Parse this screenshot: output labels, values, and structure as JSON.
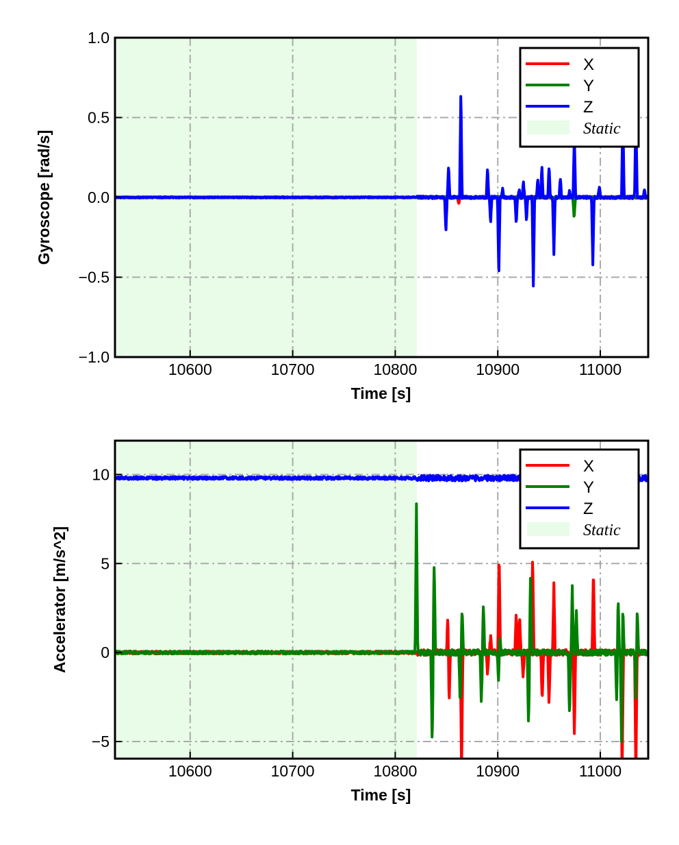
{
  "chart_data": [
    {
      "type": "line",
      "xlabel": "Time [s]",
      "ylabel": "Gyroscope [rad/s]",
      "xlim": [
        10526.7,
        11046.7
      ],
      "ylim": [
        -1.0,
        1.0
      ],
      "xticks": [
        10600,
        10700,
        10800,
        10900,
        11000
      ],
      "xtick_labels": [
        "10600",
        "10700",
        "10800",
        "10900",
        "11000"
      ],
      "yticks": [
        -1.0,
        -0.5,
        0.0,
        0.5,
        1.0
      ],
      "ytick_labels": [
        "−1.0",
        "−0.5",
        "0.0",
        "0.5",
        "1.0"
      ],
      "grid": true,
      "legend_position": "top-right",
      "static_region": {
        "label": "Static",
        "x_start": 10526.7,
        "x_end": 10821,
        "color": "#e8fce8"
      },
      "series": [
        {
          "name": "X",
          "color": "#ff0000",
          "baseline": 0.0,
          "noise": 0.003,
          "spikes": [
            [
              10862,
              -0.04
            ]
          ]
        },
        {
          "name": "Y",
          "color": "#008000",
          "baseline": 0.0,
          "noise": 0.003,
          "spikes": [
            [
              10974.5,
              -0.14
            ]
          ]
        },
        {
          "name": "Z",
          "color": "#0000ff",
          "baseline": 0.0,
          "noise": 0.004,
          "spikes": [
            [
              10849.4,
              -0.22
            ],
            [
              10852,
              0.2
            ],
            [
              10864,
              0.68
            ],
            [
              10890,
              0.19
            ],
            [
              10893,
              -0.16
            ],
            [
              10901,
              -0.5
            ],
            [
              10904.7,
              0.05
            ],
            [
              10918,
              -0.17
            ],
            [
              10921,
              0.05
            ],
            [
              10925,
              0.1
            ],
            [
              10928,
              -0.15
            ],
            [
              10934.7,
              -0.55
            ],
            [
              10939,
              0.12
            ],
            [
              10943,
              0.2
            ],
            [
              10950,
              0.2
            ],
            [
              10954.7,
              -0.36
            ],
            [
              10961,
              0.13
            ],
            [
              10970,
              0.04
            ],
            [
              10974.7,
              0.4
            ],
            [
              10992.7,
              -0.42
            ],
            [
              10999,
              0.07
            ],
            [
              11022,
              0.55
            ],
            [
              11034.7,
              0.55
            ],
            [
              11043,
              0.05
            ]
          ]
        }
      ]
    },
    {
      "type": "line",
      "xlabel": "Time [s]",
      "ylabel": "Accelerator [m/s^2]",
      "xlim": [
        10526.7,
        11046.7
      ],
      "ylim": [
        -5.96,
        11.9
      ],
      "xticks": [
        10600,
        10700,
        10800,
        10900,
        11000
      ],
      "xtick_labels": [
        "10600",
        "10700",
        "10800",
        "10900",
        "11000"
      ],
      "yticks": [
        -5,
        0,
        5,
        10
      ],
      "ytick_labels": [
        "−5",
        "0",
        "5",
        "10"
      ],
      "grid": true,
      "legend_position": "top-right",
      "static_region": {
        "label": "Static",
        "x_start": 10526.7,
        "x_end": 10821,
        "color": "#e8fce8"
      },
      "series": [
        {
          "name": "X",
          "color": "#ff0000",
          "baseline": 0.0,
          "noise": 0.08,
          "spikes": [
            [
              10851.3,
              2.3
            ],
            [
              10852.5,
              -3.0
            ],
            [
              10864.7,
              -7
            ],
            [
              10890,
              -1.3
            ],
            [
              10893,
              0.9
            ],
            [
              10901.3,
              5.65
            ],
            [
              10918,
              2.3
            ],
            [
              10921.3,
              2.0
            ],
            [
              10924.7,
              -1.5
            ],
            [
              10934,
              5.6
            ],
            [
              10943.3,
              -2.8
            ],
            [
              10950,
              -3.0
            ],
            [
              10954.7,
              3.8
            ],
            [
              10974.7,
              -4.6
            ],
            [
              10993.3,
              4.95
            ],
            [
              11021.3,
              -7
            ],
            [
              11034.7,
              -7
            ]
          ]
        },
        {
          "name": "Y",
          "color": "#008000",
          "baseline": 0.0,
          "noise": 0.08,
          "spikes": [
            [
              10820.7,
              8.35
            ],
            [
              10836,
              -5.2
            ],
            [
              10838,
              5.1
            ],
            [
              10863.3,
              -2.9
            ],
            [
              10865.3,
              2.5
            ],
            [
              10884,
              -2.9
            ],
            [
              10886,
              2.8
            ],
            [
              10900.7,
              -1.6
            ],
            [
              10902,
              0.8
            ],
            [
              10930,
              -4.2
            ],
            [
              10932,
              4.6
            ],
            [
              10970,
              -3.7
            ],
            [
              10972.7,
              3.7
            ],
            [
              10976.7,
              2.3
            ],
            [
              11016,
              -3.0
            ],
            [
              11017.3,
              3.4
            ],
            [
              11020.7,
              -5.0
            ],
            [
              11022,
              2.6
            ],
            [
              11034.7,
              -2.6
            ],
            [
              11036,
              2.5
            ]
          ]
        },
        {
          "name": "Z",
          "color": "#0000ff",
          "baseline": 9.8,
          "noise": 0.08,
          "spikes": []
        }
      ]
    }
  ]
}
